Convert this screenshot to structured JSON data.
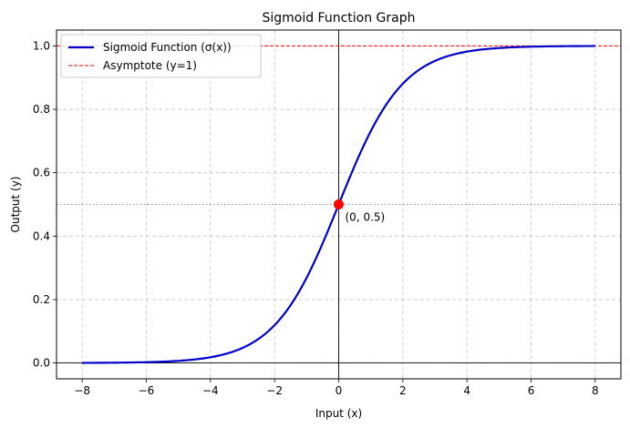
{
  "chart_data": {
    "type": "line",
    "title": "Sigmoid Function Graph",
    "xlabel": "Input (x)",
    "ylabel": "Output (y)",
    "xlim": [
      -8.8,
      8.8
    ],
    "ylim": [
      -0.05,
      1.05
    ],
    "xticks": [
      -8,
      -6,
      -4,
      -2,
      0,
      2,
      4,
      6,
      8
    ],
    "xtick_labels": [
      "−8",
      "−6",
      "−4",
      "−2",
      "0",
      "2",
      "4",
      "6",
      "8"
    ],
    "yticks": [
      0.0,
      0.2,
      0.4,
      0.6,
      0.8,
      1.0
    ],
    "ytick_labels": [
      "0.0",
      "0.2",
      "0.4",
      "0.6",
      "0.8",
      "1.0"
    ],
    "grid": true,
    "legend_position": "top-left",
    "function": "sigmoid",
    "x_range": [
      -8,
      8
    ],
    "series": [
      {
        "name": "Sigmoid Function (σ(x))",
        "color": "#0000cc",
        "style": "solid"
      },
      {
        "name": "Asymptote (y=1)",
        "color": "#ff0000",
        "style": "dashed",
        "y": 1.0
      }
    ],
    "reference_lines": {
      "vertical_x": 0,
      "horizontal_y": 0,
      "dotted_y": 0.5
    },
    "highlight_point": {
      "x": 0,
      "y": 0.5,
      "label": "(0, 0.5)",
      "color": "#ff0000"
    }
  }
}
